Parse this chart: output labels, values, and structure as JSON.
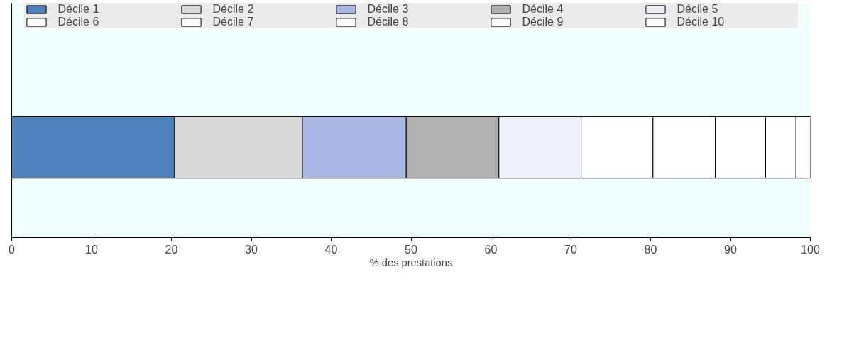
{
  "chart_data": {
    "type": "bar",
    "orientation": "horizontal",
    "stacked": true,
    "categories": [
      null
    ],
    "xlabel": "% des prestations",
    "xlim": [
      0,
      100
    ],
    "xticks": [
      0,
      10,
      20,
      30,
      40,
      50,
      60,
      70,
      80,
      90,
      100
    ],
    "legend": "top",
    "tick_labels": "x",
    "series": [
      {
        "name": "Décile 1",
        "color": "#4f81bd",
        "values": [
          20.4
        ]
      },
      {
        "name": "Décile 2",
        "color": "#d9d9d9",
        "values": [
          16.0
        ]
      },
      {
        "name": "Décile 3",
        "color": "#a9b8e3",
        "values": [
          13.0
        ]
      },
      {
        "name": "Décile 4",
        "color": "#b0b0b0",
        "values": [
          11.6
        ]
      },
      {
        "name": "Décile 5",
        "color": "#eef0fa",
        "values": [
          10.3
        ]
      },
      {
        "name": "Décile 6",
        "color": "#ffffff",
        "values": [
          9.0
        ]
      },
      {
        "name": "Décile 7",
        "color": "#ffffff",
        "values": [
          7.8
        ]
      },
      {
        "name": "Décile 8",
        "color": "#ffffff",
        "values": [
          6.3
        ]
      },
      {
        "name": "Décile 9",
        "color": "#ffffff",
        "values": [
          3.8
        ]
      },
      {
        "name": "Décile 10",
        "color": "#ffffff",
        "values": [
          1.8
        ]
      }
    ]
  }
}
